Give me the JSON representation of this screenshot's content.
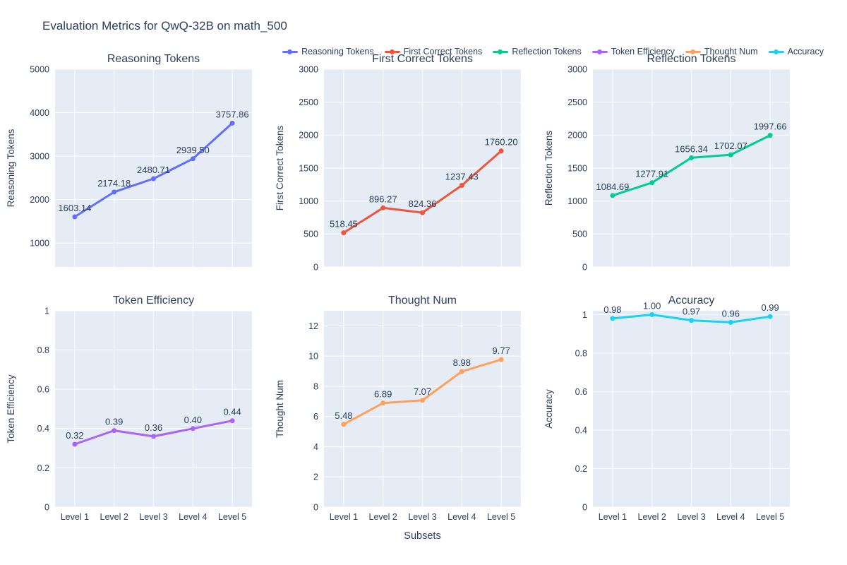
{
  "window": {
    "title": "Evaluation Metrics for QwQ-32B on math_500"
  },
  "style": {
    "paper_bg": "#ffffff",
    "plot_bg": "#E5ECF6",
    "grid_color": "#ffffff",
    "text_color": "#2a3f5f"
  },
  "axes": {
    "x_title": "Subsets",
    "categories": [
      "Level 1",
      "Level 2",
      "Level 3",
      "Level 4",
      "Level 5"
    ]
  },
  "legend": {
    "position": "top",
    "items": [
      {
        "label": "Reasoning Tokens",
        "color": "#636EFA"
      },
      {
        "label": "First Correct Tokens",
        "color": "#EF553B"
      },
      {
        "label": "Reflection Tokens",
        "color": "#00CC96"
      },
      {
        "label": "Token Efficiency",
        "color": "#AB63FA"
      },
      {
        "label": "Thought Num",
        "color": "#FFA15A"
      },
      {
        "label": "Accuracy",
        "color": "#19D3F3"
      }
    ]
  },
  "chart_data": [
    {
      "type": "line",
      "title": "Reasoning Tokens",
      "ylabel": "Reasoning Tokens",
      "series": "Reasoning Tokens",
      "color": "#636EFA",
      "categories": [
        "Level 1",
        "Level 2",
        "Level 3",
        "Level 4",
        "Level 5"
      ],
      "values": [
        1603.14,
        2174.18,
        2480.71,
        2939.5,
        3757.86
      ],
      "point_labels": [
        "1603.14",
        "2174.18",
        "2480.71",
        "2939.50",
        "3757.86"
      ],
      "ylim": [
        450,
        5000
      ],
      "yticks": [
        1000,
        2000,
        3000,
        4000,
        5000
      ],
      "ytick_labels": [
        "1000",
        "2000",
        "3000",
        "4000",
        "5000"
      ],
      "grid": true,
      "show_x_tick_labels": false
    },
    {
      "type": "line",
      "title": "First Correct Tokens",
      "ylabel": "First Correct Tokens",
      "series": "First Correct Tokens",
      "color": "#EF553B",
      "categories": [
        "Level 1",
        "Level 2",
        "Level 3",
        "Level 4",
        "Level 5"
      ],
      "values": [
        518.45,
        896.27,
        824.36,
        1237.43,
        1760.2
      ],
      "point_labels": [
        "518.45",
        "896.27",
        "824.36",
        "1237.43",
        "1760.20"
      ],
      "ylim": [
        0,
        3000
      ],
      "yticks": [
        0,
        500,
        1000,
        1500,
        2000,
        2500,
        3000
      ],
      "ytick_labels": [
        "0",
        "500",
        "1000",
        "1500",
        "2000",
        "2500",
        "3000"
      ],
      "grid": true,
      "show_x_tick_labels": false
    },
    {
      "type": "line",
      "title": "Reflection Tokens",
      "ylabel": "Reflection Tokens",
      "series": "Reflection Tokens",
      "color": "#00CC96",
      "categories": [
        "Level 1",
        "Level 2",
        "Level 3",
        "Level 4",
        "Level 5"
      ],
      "values": [
        1084.69,
        1277.91,
        1656.34,
        1702.07,
        1997.66
      ],
      "point_labels": [
        "1084.69",
        "1277.91",
        "1656.34",
        "1702.07",
        "1997.66"
      ],
      "ylim": [
        0,
        3000
      ],
      "yticks": [
        0,
        500,
        1000,
        1500,
        2000,
        2500,
        3000
      ],
      "ytick_labels": [
        "0",
        "500",
        "1000",
        "1500",
        "2000",
        "2500",
        "3000"
      ],
      "grid": true,
      "show_x_tick_labels": false
    },
    {
      "type": "line",
      "title": "Token Efficiency",
      "ylabel": "Token Efficiency",
      "series": "Token Efficiency",
      "color": "#AB63FA",
      "categories": [
        "Level 1",
        "Level 2",
        "Level 3",
        "Level 4",
        "Level 5"
      ],
      "values": [
        0.32,
        0.39,
        0.36,
        0.4,
        0.44
      ],
      "point_labels": [
        "0.32",
        "0.39",
        "0.36",
        "0.40",
        "0.44"
      ],
      "ylim": [
        0,
        1
      ],
      "yticks": [
        0,
        0.2,
        0.4,
        0.6,
        0.8,
        1
      ],
      "ytick_labels": [
        "0",
        "0.2",
        "0.4",
        "0.6",
        "0.8",
        "1"
      ],
      "grid": true,
      "show_x_tick_labels": true
    },
    {
      "type": "line",
      "title": "Thought Num",
      "ylabel": "Thought Num",
      "series": "Thought Num",
      "color": "#FFA15A",
      "categories": [
        "Level 1",
        "Level 2",
        "Level 3",
        "Level 4",
        "Level 5"
      ],
      "values": [
        5.48,
        6.89,
        7.07,
        8.98,
        9.77
      ],
      "point_labels": [
        "5.48",
        "6.89",
        "7.07",
        "8.98",
        "9.77"
      ],
      "ylim": [
        0,
        13
      ],
      "yticks": [
        0,
        2,
        4,
        6,
        8,
        10,
        12
      ],
      "ytick_labels": [
        "0",
        "2",
        "4",
        "6",
        "8",
        "10",
        "12"
      ],
      "grid": true,
      "show_x_tick_labels": true
    },
    {
      "type": "line",
      "title": "Accuracy",
      "ylabel": "Accuracy",
      "series": "Accuracy",
      "color": "#19D3F3",
      "categories": [
        "Level 1",
        "Level 2",
        "Level 3",
        "Level 4",
        "Level 5"
      ],
      "values": [
        0.98,
        1.0,
        0.97,
        0.96,
        0.99
      ],
      "point_labels": [
        "0.98",
        "1.00",
        "0.97",
        "0.96",
        "0.99"
      ],
      "ylim": [
        0,
        1.02
      ],
      "yticks": [
        0,
        0.2,
        0.4,
        0.6,
        0.8,
        1
      ],
      "ytick_labels": [
        "0",
        "0.2",
        "0.4",
        "0.6",
        "0.8",
        "1"
      ],
      "grid": true,
      "show_x_tick_labels": true
    }
  ]
}
